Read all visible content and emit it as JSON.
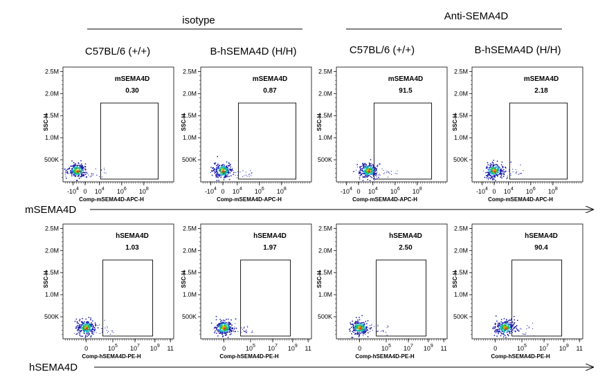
{
  "header": {
    "groups": [
      "isotype",
      "Anti-SEMA4D"
    ],
    "columns": [
      "C57BL/6 (+/+)",
      "B-hSEMA4D (H/H)",
      "C57BL/6 (+/+)",
      "B-hSEMA4D (H/H)"
    ]
  },
  "rows": [
    {
      "axis_label": "mSEMA4D"
    },
    {
      "axis_label": "hSEMA4D"
    }
  ],
  "chart_data": [
    {
      "type": "scatter",
      "row": 0,
      "column": 0,
      "title": "mSEMA4D",
      "gate_percent": "0.30",
      "xlabel": "Comp-mSEMA4D-APC-H",
      "ylabel": "SSC-H",
      "xtick_labels": [
        "-10^4",
        "0",
        "10^4",
        "10^6",
        "10^8"
      ],
      "ytick_labels": [
        "500K",
        "1.0M",
        "1.5M",
        "2.0M",
        "2.5M"
      ],
      "ylim": [
        0,
        2600000
      ],
      "population_center": {
        "x": -1500,
        "y": 250000
      }
    },
    {
      "type": "scatter",
      "row": 0,
      "column": 1,
      "title": "mSEMA4D",
      "gate_percent": "0.87",
      "xlabel": "Comp-mSEMA4D-APC-H",
      "ylabel": "SSC-H",
      "xtick_labels": [
        "-10^4",
        "0",
        "10^4",
        "10^6",
        "10^8"
      ],
      "ytick_labels": [
        "500K",
        "1.0M",
        "1.5M",
        "2.0M",
        "2.5M"
      ],
      "ylim": [
        0,
        2600000
      ],
      "population_center": {
        "x": 0,
        "y": 250000
      }
    },
    {
      "type": "scatter",
      "row": 0,
      "column": 2,
      "title": "mSEMA4D",
      "gate_percent": "91.5",
      "xlabel": "Comp-mSEMA4D-APC-H",
      "ylabel": "SSC-H",
      "xtick_labels": [
        "-10^4",
        "0",
        "10^4",
        "10^6",
        "10^8"
      ],
      "ytick_labels": [
        "500K",
        "1.0M",
        "1.5M",
        "2.0M",
        "2.5M"
      ],
      "ylim": [
        0,
        2600000
      ],
      "population_center": {
        "x": 10000,
        "y": 250000
      }
    },
    {
      "type": "scatter",
      "row": 0,
      "column": 3,
      "title": "mSEMA4D",
      "gate_percent": "2.18",
      "xlabel": "Comp-mSEMA4D-APC-H",
      "ylabel": "SSC-H",
      "xtick_labels": [
        "-10^4",
        "0",
        "10^4",
        "10^6",
        "10^8"
      ],
      "ytick_labels": [
        "500K",
        "1.0M",
        "1.5M",
        "2.0M",
        "2.5M"
      ],
      "ylim": [
        0,
        2600000
      ],
      "population_center": {
        "x": 0,
        "y": 250000
      }
    },
    {
      "type": "scatter",
      "row": 1,
      "column": 0,
      "title": "hSEMA4D",
      "gate_percent": "1.03",
      "xlabel": "Comp-hSEMA4D-PE-H",
      "ylabel": "SSC-H",
      "xtick_labels": [
        "0",
        "10^5",
        "10^7",
        "10^9",
        "11"
      ],
      "ytick_labels": [
        "500K",
        "1.0M",
        "1.5M",
        "2.0M",
        "2.5M"
      ],
      "ylim": [
        0,
        2600000
      ],
      "population_center": {
        "x": 0,
        "y": 250000
      }
    },
    {
      "type": "scatter",
      "row": 1,
      "column": 1,
      "title": "hSEMA4D",
      "gate_percent": "1.97",
      "xlabel": "Comp-hSEMA4D-PE-H",
      "ylabel": "SSC-H",
      "xtick_labels": [
        "0",
        "10^5",
        "10^7",
        "10^9",
        "11"
      ],
      "ytick_labels": [
        "500K",
        "1.0M",
        "1.5M",
        "2.0M",
        "2.5M"
      ],
      "ylim": [
        0,
        2600000
      ],
      "population_center": {
        "x": 0,
        "y": 250000
      }
    },
    {
      "type": "scatter",
      "row": 1,
      "column": 2,
      "title": "hSEMA4D",
      "gate_percent": "2.50",
      "xlabel": "Comp-hSEMA4D-PE-H",
      "ylabel": "SSC-H",
      "xtick_labels": [
        "0",
        "10^5",
        "10^7",
        "10^9",
        "11"
      ],
      "ytick_labels": [
        "500K",
        "1.0M",
        "1.5M",
        "2.0M",
        "2.5M"
      ],
      "ylim": [
        0,
        2600000
      ],
      "population_center": {
        "x": 0,
        "y": 250000
      }
    },
    {
      "type": "scatter",
      "row": 1,
      "column": 3,
      "title": "hSEMA4D",
      "gate_percent": "90.4",
      "xlabel": "Comp-hSEMA4D-PE-H",
      "ylabel": "SSC-H",
      "xtick_labels": [
        "0",
        "10^5",
        "10^7",
        "10^9",
        "11"
      ],
      "ytick_labels": [
        "500K",
        "1.0M",
        "1.5M",
        "2.0M",
        "2.5M"
      ],
      "ylim": [
        0,
        2600000
      ],
      "population_center": {
        "x": 10000,
        "y": 250000
      }
    }
  ]
}
